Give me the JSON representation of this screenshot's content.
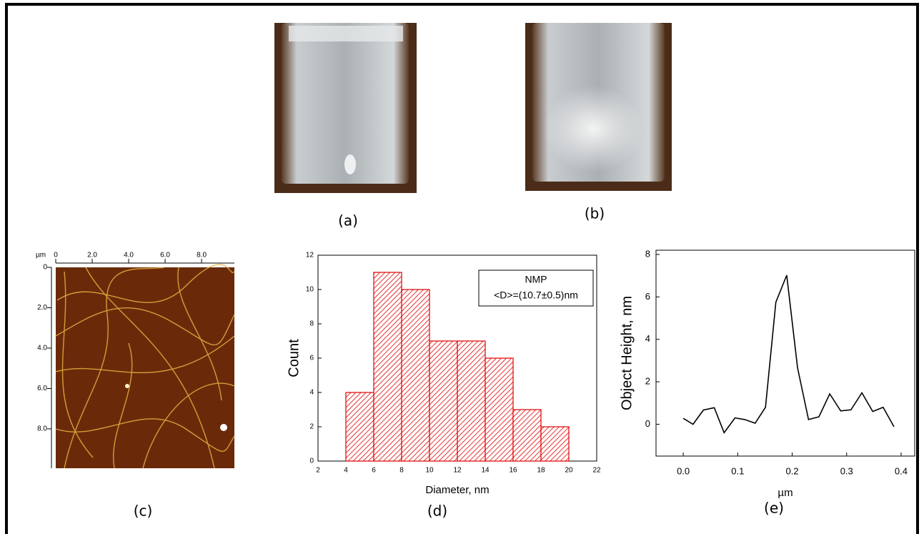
{
  "panel_labels": [
    "(a)",
    "(b)",
    "(c)",
    "(d)",
    "(e)"
  ],
  "chart_data": [
    {
      "type": "image",
      "unit_label": "µm",
      "xlim": [
        0,
        9.8
      ],
      "ylim": [
        0,
        9.95
      ],
      "xticks": [
        0,
        {
          "value": 2,
          "label": "2.0"
        },
        {
          "value": 4,
          "label": "4.0"
        },
        {
          "value": 6,
          "label": "6.0"
        },
        {
          "value": 8,
          "label": "8.0"
        }
      ],
      "yticks": [
        0,
        {
          "value": 2,
          "label": "2.0"
        },
        {
          "value": 4,
          "label": "4.0"
        },
        {
          "value": 6,
          "label": "6.0"
        },
        {
          "value": 8,
          "label": "8.0"
        }
      ]
    },
    {
      "type": "histogram",
      "xlabel": "Diameter, nm",
      "ylabel": "Count",
      "legend_lines": [
        "NMP",
        "<D>=(10.7±0.5)nm"
      ],
      "legend": "upper right",
      "bins": [
        4,
        6,
        8,
        10,
        12,
        14,
        16,
        18,
        20
      ],
      "values": [
        4,
        11,
        10,
        7,
        7,
        6,
        3,
        2
      ],
      "color": "#e00000",
      "xlim": [
        2,
        22
      ],
      "xticks": [
        2,
        4,
        6,
        8,
        10,
        12,
        14,
        16,
        18,
        20,
        22
      ],
      "ylim": [
        0,
        12
      ],
      "yticks": [
        0,
        2,
        4,
        6,
        8,
        10,
        12
      ]
    },
    {
      "type": "line",
      "xlabel": "µm",
      "ylabel": "Object Height, nm",
      "color": "#000000",
      "x": [
        0,
        0.018,
        0.037,
        0.057,
        0.075,
        0.095,
        0.113,
        0.132,
        0.151,
        0.17,
        0.19,
        0.21,
        0.23,
        0.249,
        0.269,
        0.289,
        0.308,
        0.328,
        0.348,
        0.367,
        0.387
      ],
      "values": [
        0.28,
        0.0,
        0.67,
        0.78,
        -0.4,
        0.3,
        0.22,
        0.05,
        0.8,
        5.75,
        7.02,
        2.65,
        0.22,
        0.35,
        1.43,
        0.63,
        0.68,
        1.48,
        0.6,
        0.8,
        -0.12
      ],
      "xlim": [
        -0.05,
        0.425
      ],
      "xticks": [
        {
          "value": 0,
          "label": "0.0"
        },
        0.1,
        0.2,
        0.3,
        0.4
      ],
      "ylim": [
        -1.5,
        8.2
      ],
      "yticks": [
        0,
        2,
        4,
        6,
        8
      ]
    }
  ]
}
